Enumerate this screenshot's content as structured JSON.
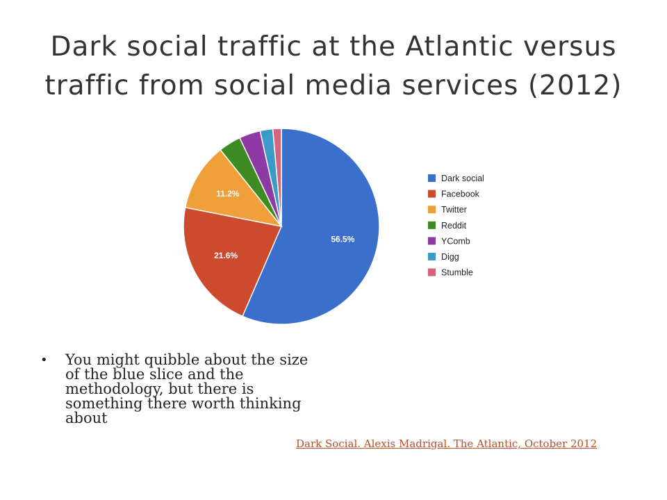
{
  "slide": {
    "title_line1": "Dark social traffic at the Atlantic versus",
    "title_line2": "traffic from social media services (2012)",
    "bullet": "You might quibble about the size of the blue slice and the methodology, but there is something there worth thinking about",
    "source_link": "Dark Social. Alexis Madrigal. The Atlantic, October 2012"
  },
  "chart_data": {
    "type": "pie",
    "title": "",
    "legend_position": "right",
    "slices": [
      {
        "label": "Dark social",
        "value": 56.5,
        "color": "#3b6fcc",
        "data_label": "56.5%"
      },
      {
        "label": "Facebook",
        "value": 21.6,
        "color": "#cc4a2e",
        "data_label": "21.6%"
      },
      {
        "label": "Twitter",
        "value": 11.2,
        "color": "#f0a03a",
        "data_label": "11.2%"
      },
      {
        "label": "Reddit",
        "value": 3.7,
        "color": "#3d8b22",
        "data_label": ""
      },
      {
        "label": "YComb",
        "value": 3.5,
        "color": "#8e3aa5",
        "data_label": ""
      },
      {
        "label": "Digg",
        "value": 2.1,
        "color": "#3a9ac8",
        "data_label": ""
      },
      {
        "label": "Stumble",
        "value": 1.4,
        "color": "#d9627e",
        "data_label": ""
      }
    ]
  }
}
